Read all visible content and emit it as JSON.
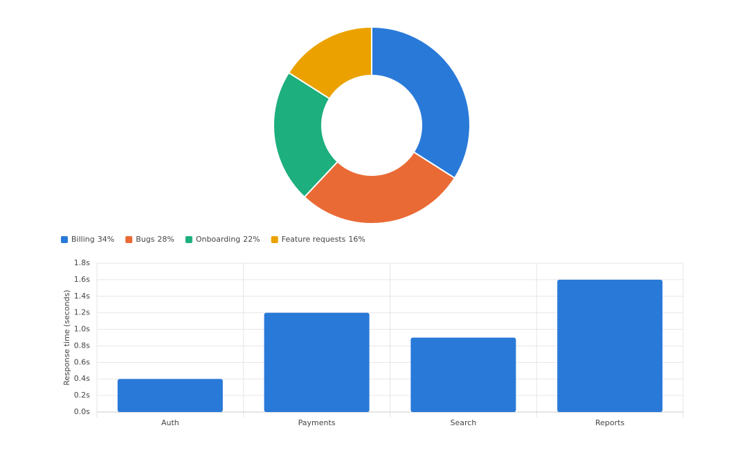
{
  "chart_data": [
    {
      "type": "donut",
      "categories": [
        "Billing",
        "Bugs",
        "Onboarding",
        "Feature requests"
      ],
      "values": [
        34,
        28,
        22,
        16
      ],
      "value_labels": [
        "34%",
        "28%",
        "22%",
        "16%"
      ],
      "colors": [
        "#2979d8",
        "#ea6a35",
        "#1daf7d",
        "#eba200"
      ],
      "legend": "bottom-left"
    },
    {
      "type": "bar",
      "categories": [
        "Auth",
        "Payments",
        "Search",
        "Reports"
      ],
      "values": [
        0.4,
        1.2,
        0.9,
        1.6
      ],
      "color": "#2979d8",
      "ylabel": "Response time (seconds)",
      "ylim": [
        0,
        1.8
      ],
      "yticks": [
        {
          "value": 0,
          "label": "0.0s"
        },
        {
          "value": 0.2,
          "label": "0.2s"
        },
        {
          "value": 0.4,
          "label": "0.4s"
        },
        {
          "value": 0.6,
          "label": "0.6s"
        },
        {
          "value": 0.8,
          "label": "0.8s"
        },
        {
          "value": 1.0,
          "label": "1.0s"
        },
        {
          "value": 1.2,
          "label": "1.2s"
        },
        {
          "value": 1.4,
          "label": "1.4s"
        },
        {
          "value": 1.6,
          "label": "1.6s"
        },
        {
          "value": 1.8,
          "label": "1.8s"
        }
      ],
      "grid": true
    }
  ]
}
